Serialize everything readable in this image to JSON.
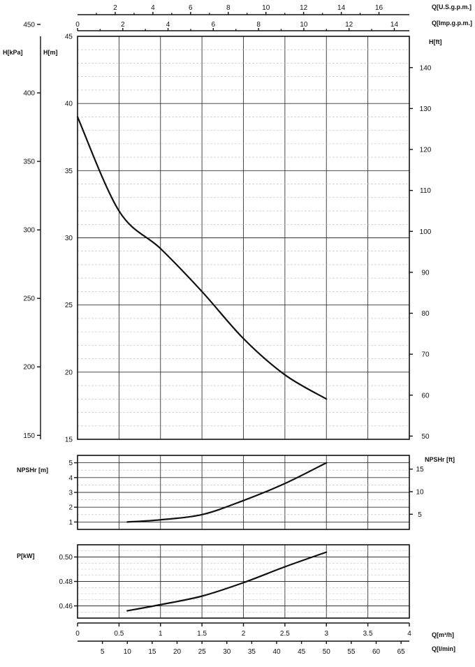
{
  "chart_data": [
    {
      "type": "line",
      "name_key": "head",
      "series": [
        {
          "x": [
            0,
            0.5,
            1,
            1.5,
            2,
            2.5,
            3
          ],
          "y": [
            39,
            32,
            29.2,
            26,
            22.5,
            19.8,
            18
          ]
        }
      ],
      "xlim": [
        0,
        4
      ],
      "ylim": [
        15,
        45
      ],
      "grid": true,
      "axes": {
        "top_usgpm": {
          "label": "Q[U.S.g.p.m.]",
          "ticks": [
            "2",
            "4",
            "6",
            "8",
            "10",
            "12",
            "14",
            "16"
          ]
        },
        "top_impgpm": {
          "label": "Q[Imp.g.p.m.]",
          "ticks": [
            "0",
            "2",
            "4",
            "6",
            "8",
            "10",
            "12",
            "14"
          ]
        },
        "left_kpa": {
          "label": "H[kPa]",
          "ticks": [
            "150",
            "200",
            "250",
            "300",
            "350",
            "400",
            "450"
          ]
        },
        "left_m": {
          "label": "H[m]",
          "ticks": [
            "15",
            "20",
            "25",
            "30",
            "35",
            "40",
            "45"
          ]
        },
        "right_ft": {
          "label": "H[ft]",
          "ticks": [
            "50",
            "60",
            "70",
            "80",
            "90",
            "100",
            "110",
            "120",
            "130",
            "140"
          ]
        }
      }
    },
    {
      "type": "line",
      "name_key": "npsh",
      "series": [
        {
          "x": [
            0.6,
            1.0,
            1.5,
            2.0,
            2.5,
            3.0
          ],
          "y": [
            1.0,
            1.15,
            1.5,
            2.45,
            3.6,
            5.0
          ]
        }
      ],
      "xlim": [
        0,
        4
      ],
      "ylim": [
        0.5,
        5.5
      ],
      "grid": true,
      "axes": {
        "left_m": {
          "label": "NPSHr [m]",
          "ticks": [
            "1",
            "2",
            "3",
            "4",
            "5"
          ]
        },
        "right_ft": {
          "label": "NPSHr [ft]",
          "ticks": [
            "5",
            "10",
            "15"
          ]
        }
      }
    },
    {
      "type": "line",
      "name_key": "power",
      "series": [
        {
          "x": [
            0.6,
            1.0,
            1.5,
            2.0,
            2.5,
            3.0
          ],
          "y": [
            0.456,
            0.461,
            0.468,
            0.479,
            0.492,
            0.504
          ]
        }
      ],
      "xlim": [
        0,
        4
      ],
      "ylim": [
        0.45,
        0.51
      ],
      "grid": true,
      "axes": {
        "left_kw": {
          "label": "P[kW]",
          "ticks": [
            "0.46",
            "0.48",
            "0.50"
          ]
        }
      }
    }
  ],
  "bottom_axes": {
    "m3h": {
      "label": "Q[m³/h]",
      "ticks": [
        "0",
        "0.5",
        "1",
        "1.5",
        "2",
        "2.5",
        "3",
        "3.5",
        "4"
      ]
    },
    "lmin": {
      "label": "Q[l/min]",
      "ticks": [
        "5",
        "10",
        "15",
        "20",
        "25",
        "30",
        "35",
        "40",
        "45",
        "50",
        "55",
        "60",
        "65"
      ]
    }
  }
}
